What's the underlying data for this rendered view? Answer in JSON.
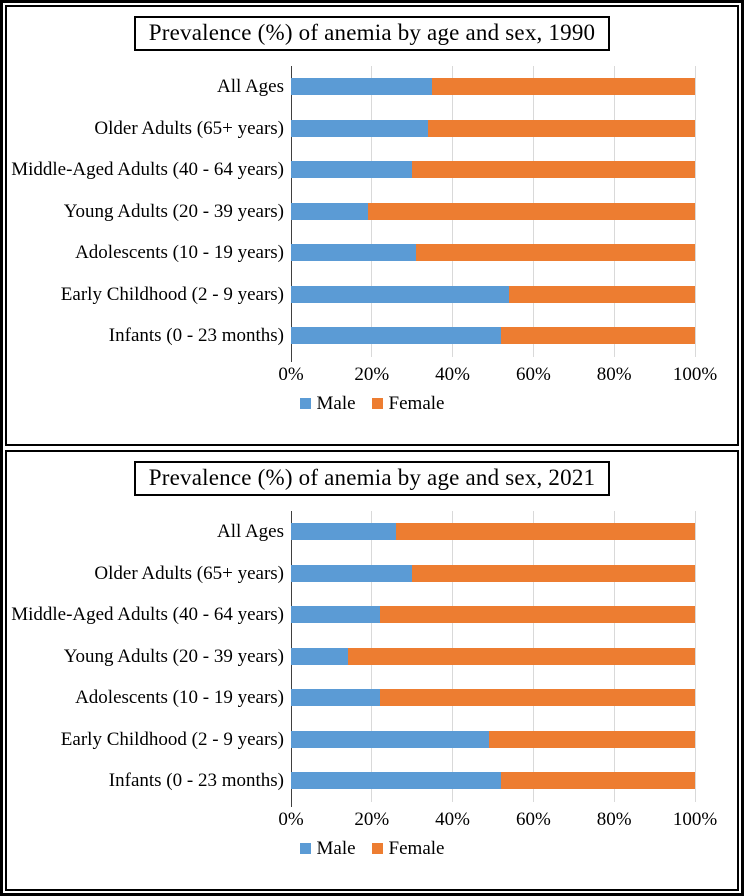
{
  "colors": {
    "male": "#5b9bd5",
    "female": "#ed7d31",
    "gridline": "#d9d9d9",
    "axis_line": "#404040"
  },
  "chart_data": [
    {
      "type": "bar",
      "orientation": "horizontal",
      "stacked": true,
      "stacked_to_100_percent": true,
      "title": "Prevalence (%) of anemia by age and sex, 1990",
      "categories": [
        "All Ages",
        "Older Adults (65+ years)",
        "Middle-Aged Adults (40 - 64 years)",
        "Young Adults (20 - 39 years)",
        "Adolescents (10 - 19 years)",
        "Early Childhood (2 - 9 years)",
        "Infants (0 - 23 months)"
      ],
      "series": [
        {
          "name": "Male",
          "values": [
            35,
            34,
            30,
            19,
            31,
            54,
            52
          ]
        },
        {
          "name": "Female",
          "values": [
            65,
            66,
            70,
            81,
            69,
            46,
            48
          ]
        }
      ],
      "xlim": [
        0,
        100
      ],
      "x_ticks": [
        "0%",
        "20%",
        "40%",
        "60%",
        "80%",
        "100%"
      ],
      "x_tick_values": [
        0,
        20,
        40,
        60,
        80,
        100
      ],
      "grid": true,
      "legend": {
        "entries": [
          "Male",
          "Female"
        ],
        "position": "bottom"
      }
    },
    {
      "type": "bar",
      "orientation": "horizontal",
      "stacked": true,
      "stacked_to_100_percent": true,
      "title": "Prevalence (%) of anemia by age and sex, 2021",
      "categories": [
        "All Ages",
        "Older Adults (65+ years)",
        "Middle-Aged Adults (40 - 64 years)",
        "Young Adults (20 - 39 years)",
        "Adolescents (10 - 19 years)",
        "Early Childhood (2 - 9 years)",
        "Infants (0 - 23 months)"
      ],
      "series": [
        {
          "name": "Male",
          "values": [
            26,
            30,
            22,
            14,
            22,
            49,
            52
          ]
        },
        {
          "name": "Female",
          "values": [
            74,
            70,
            78,
            86,
            78,
            51,
            48
          ]
        }
      ],
      "xlim": [
        0,
        100
      ],
      "x_ticks": [
        "0%",
        "20%",
        "40%",
        "60%",
        "80%",
        "100%"
      ],
      "x_tick_values": [
        0,
        20,
        40,
        60,
        80,
        100
      ],
      "grid": true,
      "legend": {
        "entries": [
          "Male",
          "Female"
        ],
        "position": "bottom"
      }
    }
  ]
}
